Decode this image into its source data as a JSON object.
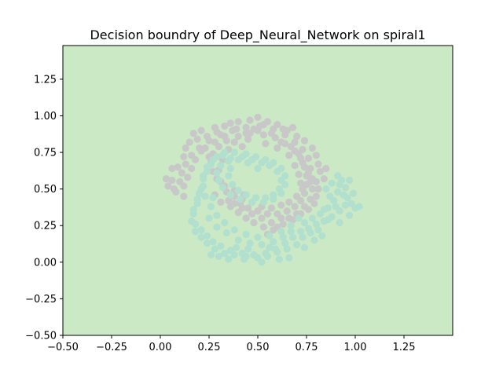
{
  "chart_data": {
    "type": "scatter",
    "title": "Decision boundry of Deep_Neural_Network on spiral1",
    "xlabel": "",
    "ylabel": "",
    "xlim": [
      -0.5,
      1.5
    ],
    "ylim": [
      -0.5,
      1.48
    ],
    "xticks": [
      -0.5,
      -0.25,
      0.0,
      0.25,
      0.5,
      0.75,
      1.0,
      1.25
    ],
    "xtick_labels": [
      "−0.50",
      "−0.25",
      "0.00",
      "0.25",
      "0.50",
      "0.75",
      "1.00",
      "1.25"
    ],
    "yticks": [
      -0.5,
      -0.25,
      0.0,
      0.25,
      0.5,
      0.75,
      1.0,
      1.25
    ],
    "ytick_labels": [
      "−0.50",
      "−0.25",
      "0.00",
      "0.25",
      "0.50",
      "0.75",
      "1.00",
      "1.25"
    ],
    "grid": false,
    "background_region_color": "#cce9c5",
    "series": [
      {
        "color": "#c8c8c8",
        "points": [
          [
            0.43,
            0.46
          ],
          [
            0.38,
            0.49
          ],
          [
            0.33,
            0.52
          ],
          [
            0.29,
            0.57
          ],
          [
            0.27,
            0.62
          ],
          [
            0.26,
            0.68
          ],
          [
            0.27,
            0.74
          ],
          [
            0.3,
            0.79
          ],
          [
            0.34,
            0.83
          ],
          [
            0.4,
            0.86
          ],
          [
            0.46,
            0.88
          ],
          [
            0.53,
            0.87
          ],
          [
            0.59,
            0.85
          ],
          [
            0.64,
            0.81
          ],
          [
            0.69,
            0.76
          ],
          [
            0.72,
            0.71
          ],
          [
            0.74,
            0.65
          ],
          [
            0.75,
            0.59
          ],
          [
            0.75,
            0.53
          ],
          [
            0.74,
            0.47
          ],
          [
            0.72,
            0.42
          ],
          [
            0.69,
            0.38
          ],
          [
            0.65,
            0.35
          ],
          [
            0.6,
            0.33
          ],
          [
            0.55,
            0.33
          ],
          [
            0.5,
            0.35
          ],
          [
            0.45,
            0.37
          ],
          [
            0.41,
            0.4
          ],
          [
            0.35,
            0.42
          ],
          [
            0.38,
            0.4
          ],
          [
            0.42,
            0.37
          ],
          [
            0.47,
            0.33
          ],
          [
            0.52,
            0.3
          ],
          [
            0.57,
            0.27
          ],
          [
            0.63,
            0.26
          ],
          [
            0.58,
            0.22
          ],
          [
            0.55,
            0.19
          ],
          [
            0.6,
            0.24
          ],
          [
            0.66,
            0.3
          ],
          [
            0.7,
            0.33
          ],
          [
            0.74,
            0.38
          ],
          [
            0.77,
            0.43
          ],
          [
            0.78,
            0.5
          ],
          [
            0.78,
            0.57
          ],
          [
            0.77,
            0.64
          ],
          [
            0.76,
            0.71
          ],
          [
            0.73,
            0.77
          ],
          [
            0.69,
            0.82
          ],
          [
            0.64,
            0.87
          ],
          [
            0.58,
            0.91
          ],
          [
            0.51,
            0.93
          ],
          [
            0.44,
            0.92
          ],
          [
            0.37,
            0.9
          ],
          [
            0.31,
            0.87
          ],
          [
            0.25,
            0.83
          ],
          [
            0.2,
            0.78
          ],
          [
            0.16,
            0.73
          ],
          [
            0.13,
            0.67
          ],
          [
            0.11,
            0.61
          ],
          [
            0.1,
            0.55
          ],
          [
            0.12,
            0.52
          ],
          [
            0.06,
            0.56
          ],
          [
            0.03,
            0.57
          ],
          [
            0.04,
            0.52
          ],
          [
            0.08,
            0.48
          ],
          [
            0.12,
            0.45
          ],
          [
            0.07,
            0.5
          ],
          [
            0.15,
            0.82
          ],
          [
            0.13,
            0.78
          ],
          [
            0.12,
            0.72
          ],
          [
            0.09,
            0.65
          ],
          [
            0.06,
            0.64
          ],
          [
            0.17,
            0.88
          ],
          [
            0.21,
            0.9
          ],
          [
            0.24,
            0.86
          ],
          [
            0.28,
            0.92
          ],
          [
            0.33,
            0.93
          ],
          [
            0.36,
            0.95
          ],
          [
            0.4,
            0.96
          ],
          [
            0.46,
            0.97
          ],
          [
            0.5,
            0.99
          ],
          [
            0.55,
            0.96
          ],
          [
            0.6,
            0.94
          ],
          [
            0.65,
            0.9
          ],
          [
            0.7,
            0.86
          ],
          [
            0.74,
            0.83
          ],
          [
            0.78,
            0.78
          ],
          [
            0.8,
            0.73
          ],
          [
            0.81,
            0.67
          ],
          [
            0.82,
            0.62
          ],
          [
            0.8,
            0.55
          ],
          [
            0.81,
            0.5
          ],
          [
            0.8,
            0.45
          ],
          [
            0.79,
            0.4
          ],
          [
            0.76,
            0.36
          ],
          [
            0.72,
            0.33
          ],
          [
            0.68,
            0.29
          ],
          [
            0.62,
            0.3
          ],
          [
            0.53,
            0.24
          ],
          [
            0.48,
            0.27
          ],
          [
            0.44,
            0.3
          ],
          [
            0.4,
            0.34
          ],
          [
            0.36,
            0.38
          ],
          [
            0.31,
            0.41
          ],
          [
            0.28,
            0.46
          ],
          [
            0.25,
            0.72
          ],
          [
            0.23,
            0.78
          ],
          [
            0.28,
            0.82
          ],
          [
            0.33,
            0.86
          ],
          [
            0.38,
            0.82
          ],
          [
            0.45,
            0.84
          ],
          [
            0.5,
            0.9
          ],
          [
            0.57,
            0.88
          ],
          [
            0.62,
            0.82
          ],
          [
            0.67,
            0.79
          ],
          [
            0.71,
            0.74
          ],
          [
            0.73,
            0.68
          ],
          [
            0.76,
            0.61
          ],
          [
            0.77,
            0.55
          ],
          [
            0.73,
            0.5
          ],
          [
            0.7,
            0.45
          ],
          [
            0.66,
            0.41
          ],
          [
            0.62,
            0.39
          ],
          [
            0.57,
            0.37
          ],
          [
            0.52,
            0.38
          ],
          [
            0.47,
            0.41
          ],
          [
            0.42,
            0.43
          ],
          [
            0.38,
            0.45
          ],
          [
            0.34,
            0.48
          ],
          [
            0.31,
            0.55
          ],
          [
            0.3,
            0.63
          ],
          [
            0.32,
            0.7
          ],
          [
            0.35,
            0.77
          ],
          [
            0.42,
            0.79
          ],
          [
            0.54,
            0.81
          ],
          [
            0.6,
            0.78
          ],
          [
            0.66,
            0.73
          ],
          [
            0.69,
            0.66
          ],
          [
            0.71,
            0.6
          ],
          [
            0.72,
            0.54
          ],
          [
            0.85,
            0.64
          ],
          [
            0.84,
            0.57
          ],
          [
            0.68,
            0.92
          ],
          [
            0.53,
            0.94
          ],
          [
            0.29,
            0.89
          ],
          [
            0.19,
            0.84
          ],
          [
            0.14,
            0.58
          ],
          [
            0.16,
            0.64
          ],
          [
            0.18,
            0.7
          ],
          [
            0.21,
            0.76
          ],
          [
            0.39,
            0.91
          ],
          [
            0.44,
            0.88
          ],
          [
            0.48,
            0.91
          ],
          [
            0.63,
            0.91
          ]
        ]
      },
      {
        "color": "#b1e0cf",
        "points": [
          [
            0.5,
            0.64
          ],
          [
            0.45,
            0.68
          ],
          [
            0.4,
            0.7
          ],
          [
            0.35,
            0.69
          ],
          [
            0.31,
            0.66
          ],
          [
            0.29,
            0.61
          ],
          [
            0.3,
            0.56
          ],
          [
            0.32,
            0.51
          ],
          [
            0.36,
            0.46
          ],
          [
            0.41,
            0.43
          ],
          [
            0.47,
            0.41
          ],
          [
            0.53,
            0.41
          ],
          [
            0.58,
            0.43
          ],
          [
            0.62,
            0.47
          ],
          [
            0.64,
            0.53
          ],
          [
            0.64,
            0.59
          ],
          [
            0.62,
            0.64
          ],
          [
            0.58,
            0.68
          ],
          [
            0.54,
            0.7
          ],
          [
            0.49,
            0.72
          ],
          [
            0.44,
            0.74
          ],
          [
            0.38,
            0.75
          ],
          [
            0.32,
            0.73
          ],
          [
            0.27,
            0.7
          ],
          [
            0.24,
            0.65
          ],
          [
            0.22,
            0.59
          ],
          [
            0.22,
            0.52
          ],
          [
            0.23,
            0.45
          ],
          [
            0.26,
            0.38
          ],
          [
            0.29,
            0.32
          ],
          [
            0.33,
            0.27
          ],
          [
            0.38,
            0.22
          ],
          [
            0.44,
            0.19
          ],
          [
            0.5,
            0.17
          ],
          [
            0.56,
            0.18
          ],
          [
            0.62,
            0.21
          ],
          [
            0.67,
            0.25
          ],
          [
            0.71,
            0.3
          ],
          [
            0.74,
            0.27
          ],
          [
            0.78,
            0.3
          ],
          [
            0.82,
            0.33
          ],
          [
            0.86,
            0.37
          ],
          [
            0.89,
            0.42
          ],
          [
            0.91,
            0.48
          ],
          [
            0.92,
            0.53
          ],
          [
            0.95,
            0.51
          ],
          [
            0.96,
            0.44
          ],
          [
            0.98,
            0.4
          ],
          [
            1.0,
            0.37
          ],
          [
            0.2,
            0.47
          ],
          [
            0.19,
            0.4
          ],
          [
            0.17,
            0.33
          ],
          [
            0.18,
            0.26
          ],
          [
            0.21,
            0.22
          ],
          [
            0.24,
            0.18
          ],
          [
            0.27,
            0.14
          ],
          [
            0.31,
            0.11
          ],
          [
            0.36,
            0.08
          ],
          [
            0.42,
            0.06
          ],
          [
            0.48,
            0.05
          ],
          [
            0.54,
            0.06
          ],
          [
            0.59,
            0.09
          ],
          [
            0.64,
            0.13
          ],
          [
            0.68,
            0.17
          ],
          [
            0.72,
            0.21
          ],
          [
            0.76,
            0.23
          ],
          [
            0.8,
            0.26
          ],
          [
            0.84,
            0.28
          ],
          [
            0.88,
            0.31
          ],
          [
            0.92,
            0.35
          ],
          [
            0.95,
            0.39
          ],
          [
            0.94,
            0.46
          ],
          [
            0.93,
            0.56
          ],
          [
            0.9,
            0.38
          ],
          [
            0.86,
            0.29
          ],
          [
            0.81,
            0.22
          ],
          [
            0.77,
            0.2
          ],
          [
            0.73,
            0.17
          ],
          [
            0.7,
            0.12
          ],
          [
            0.65,
            0.09
          ],
          [
            0.6,
            0.07
          ],
          [
            0.55,
            0.04
          ],
          [
            0.5,
            0.03
          ],
          [
            0.44,
            0.04
          ],
          [
            0.38,
            0.05
          ],
          [
            0.33,
            0.06
          ],
          [
            0.28,
            0.09
          ],
          [
            0.24,
            0.13
          ],
          [
            0.21,
            0.17
          ],
          [
            0.18,
            0.21
          ],
          [
            0.16,
            0.28
          ],
          [
            0.17,
            0.36
          ],
          [
            0.19,
            0.43
          ],
          [
            0.21,
            0.5
          ],
          [
            0.22,
            0.57
          ],
          [
            0.24,
            0.62
          ],
          [
            0.26,
            0.67
          ],
          [
            0.29,
            0.72
          ],
          [
            0.33,
            0.75
          ],
          [
            0.36,
            0.71
          ],
          [
            0.42,
            0.72
          ],
          [
            0.47,
            0.7
          ],
          [
            0.52,
            0.68
          ],
          [
            0.56,
            0.66
          ],
          [
            0.6,
            0.62
          ],
          [
            0.62,
            0.56
          ],
          [
            0.61,
            0.5
          ],
          [
            0.58,
            0.46
          ],
          [
            0.54,
            0.44
          ],
          [
            0.49,
            0.44
          ],
          [
            0.44,
            0.46
          ],
          [
            0.4,
            0.49
          ],
          [
            0.37,
            0.53
          ],
          [
            0.35,
            0.59
          ],
          [
            0.36,
            0.64
          ],
          [
            0.27,
            0.44
          ],
          [
            0.25,
            0.3
          ],
          [
            0.29,
            0.24
          ],
          [
            0.34,
            0.2
          ],
          [
            0.4,
            0.15
          ],
          [
            0.46,
            0.13
          ],
          [
            0.52,
            0.12
          ],
          [
            0.58,
            0.14
          ],
          [
            0.63,
            0.17
          ],
          [
            0.52,
            0.0
          ],
          [
            0.43,
            0.02
          ],
          [
            0.35,
            0.02
          ],
          [
            0.3,
            0.04
          ],
          [
            0.26,
            0.05
          ],
          [
            0.84,
            0.36
          ],
          [
            0.87,
            0.45
          ],
          [
            0.85,
            0.5
          ],
          [
            0.88,
            0.54
          ],
          [
            0.91,
            0.59
          ],
          [
            0.97,
            0.56
          ],
          [
            0.99,
            0.47
          ],
          [
            1.02,
            0.38
          ],
          [
            0.92,
            0.27
          ],
          [
            0.97,
            0.32
          ],
          [
            0.66,
            0.03
          ],
          [
            0.61,
            0.02
          ],
          [
            0.74,
            0.1
          ],
          [
            0.79,
            0.15
          ],
          [
            0.83,
            0.18
          ],
          [
            0.39,
            0.1
          ],
          [
            0.45,
            0.09
          ],
          [
            0.56,
            0.1
          ],
          [
            0.67,
            0.21
          ]
        ]
      }
    ]
  }
}
